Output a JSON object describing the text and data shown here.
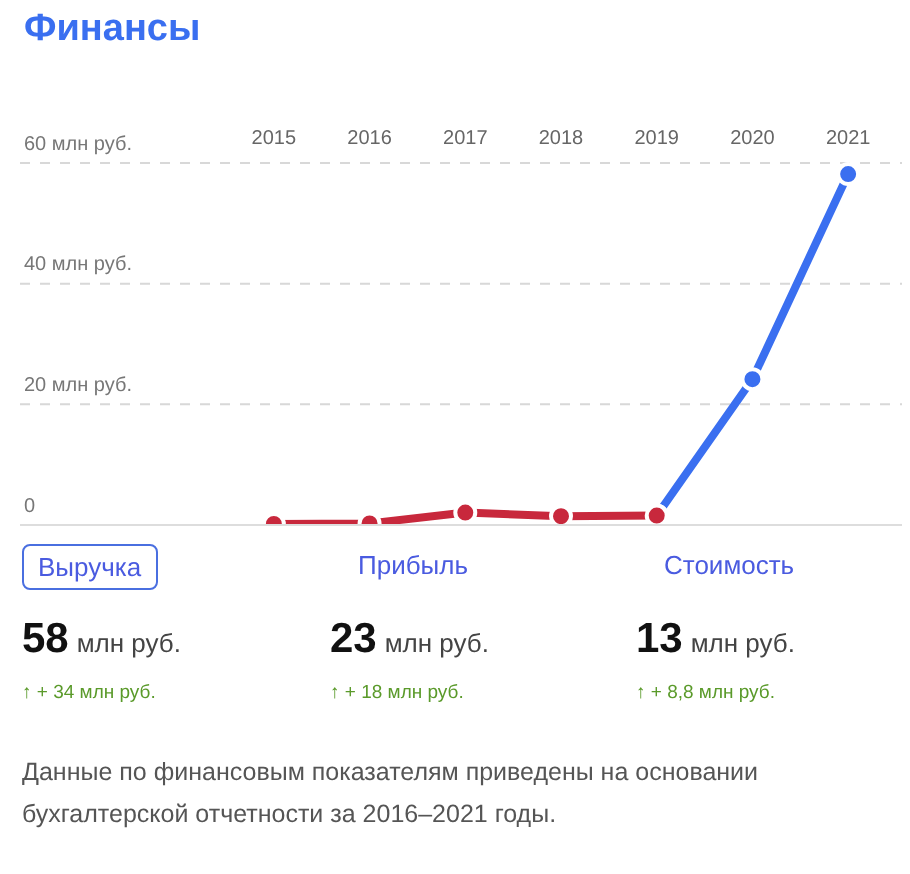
{
  "chart_data": {
    "type": "line",
    "title": "Финансы",
    "categories": [
      "2015",
      "2016",
      "2017",
      "2018",
      "2019",
      "2020",
      "2021"
    ],
    "series": [
      {
        "color": "#c8283c",
        "values": [
          0,
          0.1,
          1.9,
          1.3,
          1.4,
          null,
          null
        ]
      },
      {
        "color": "#3a6ff0",
        "values": [
          null,
          null,
          null,
          null,
          1.4,
          24,
          58
        ]
      }
    ],
    "ylim": [
      0,
      60
    ],
    "yticks": [
      {
        "value": 0,
        "label": "0"
      },
      {
        "value": 20,
        "label": "20 млн руб."
      },
      {
        "value": 40,
        "label": "40 млн руб."
      },
      {
        "value": 60,
        "label": "60 млн руб."
      }
    ],
    "grid": "y",
    "marker": "circle",
    "line_style": "solid",
    "legend": false,
    "annotations": [
      "Выручка",
      "Прибыль",
      "Стоимость",
      "58 млн руб.",
      "23 млн руб.",
      "13 млн руб.",
      "↑ + 34 млн руб.",
      "↑ + 18 млн руб.",
      "↑ + 8,8 млн руб.",
      "Данные по финансовым показателям приведены на основании бухгалтерской отчетности за 2016–2021 годы."
    ]
  }
}
